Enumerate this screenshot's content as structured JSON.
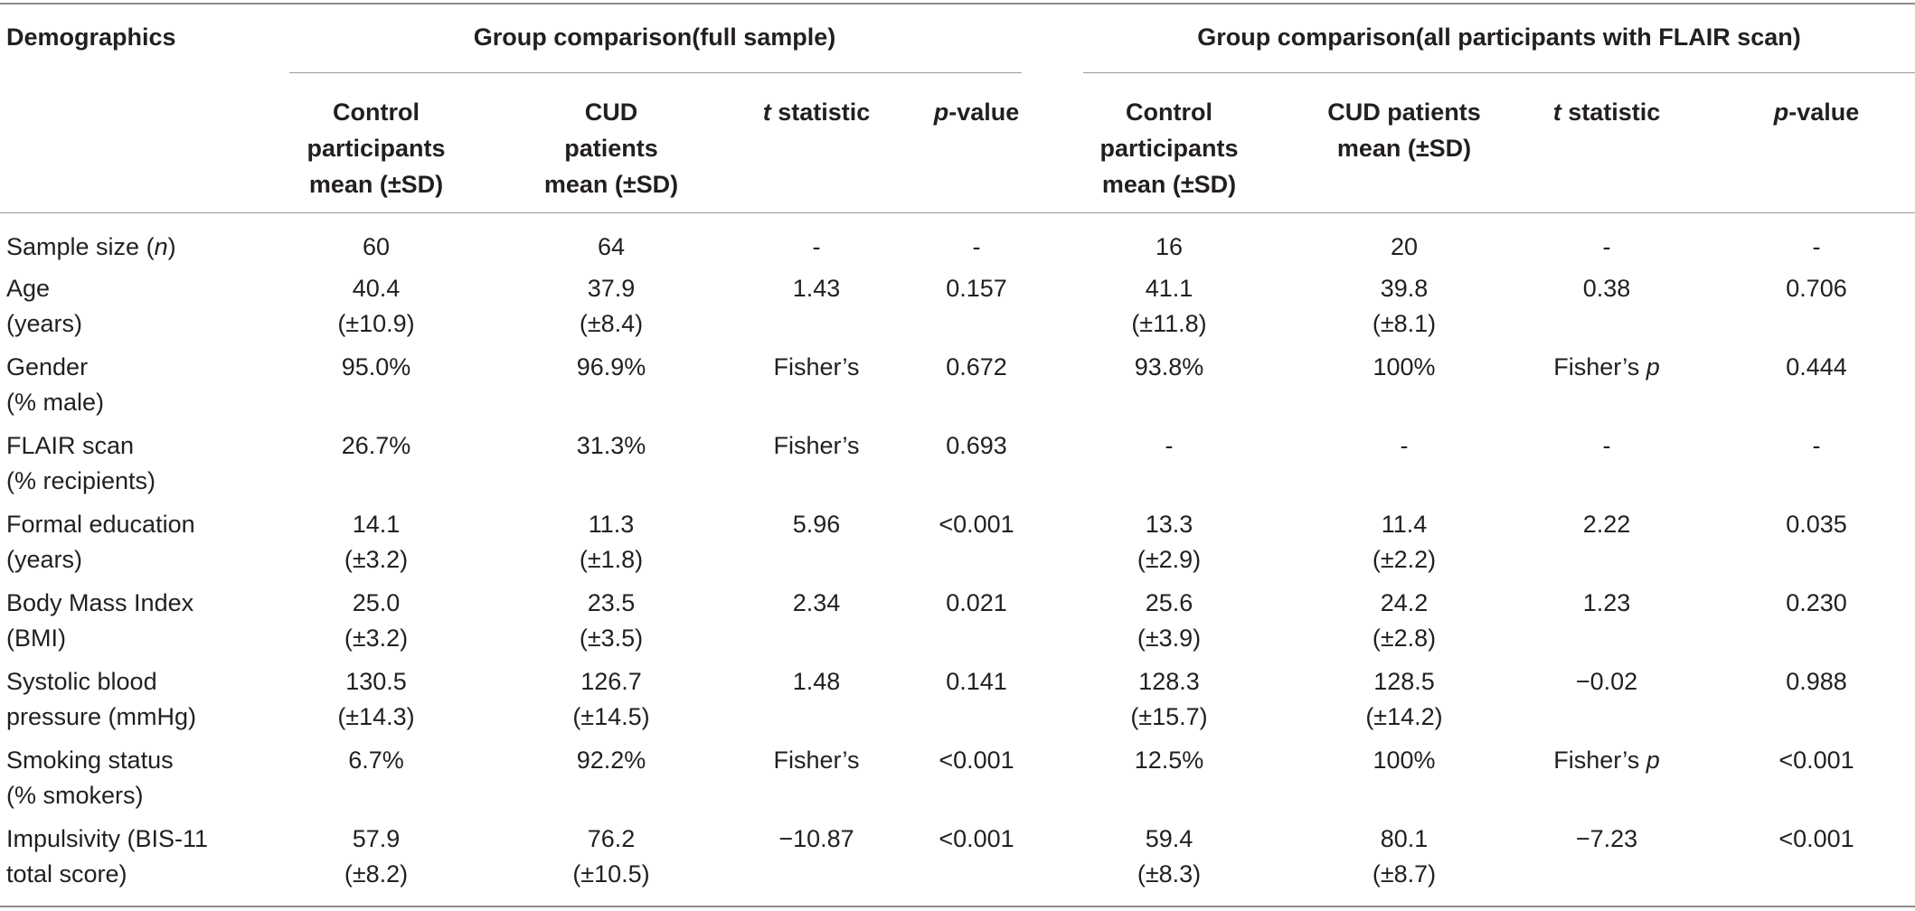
{
  "table": {
    "corner_header": "Demographics",
    "group_headers": [
      "Group comparison(full sample)",
      "Group comparison(all participants with FLAIR scan)"
    ],
    "col_headers": {
      "full_control": [
        "Control",
        "participants",
        "mean (±SD)"
      ],
      "full_cud": [
        "CUD",
        "patients",
        "mean (±SD)"
      ],
      "full_t": [
        "t",
        " statistic"
      ],
      "full_p": [
        "p",
        "-value"
      ],
      "flair_control": [
        "Control",
        "participants",
        "mean (±SD)"
      ],
      "flair_cud": [
        "CUD patients",
        "mean (±SD)"
      ],
      "flair_t": [
        "t",
        " statistic"
      ],
      "flair_p": [
        "p",
        "-value"
      ]
    },
    "rows": [
      {
        "label": [
          "Sample size (",
          "n",
          ")"
        ],
        "c1": [
          "60"
        ],
        "c2": [
          "64"
        ],
        "c3": [
          "-"
        ],
        "c4": [
          "-"
        ],
        "c5": [
          "16"
        ],
        "c6": [
          "20"
        ],
        "c7": [
          "-"
        ],
        "c8": [
          "-"
        ]
      },
      {
        "label": [
          "Age",
          "(years)"
        ],
        "c1": [
          "40.4",
          "(±10.9)"
        ],
        "c2": [
          "37.9",
          "(±8.4)"
        ],
        "c3": [
          "1.43"
        ],
        "c4": [
          "0.157"
        ],
        "c5": [
          "41.1",
          "(±11.8)"
        ],
        "c6": [
          "39.8",
          "(±8.1)"
        ],
        "c7": [
          "0.38"
        ],
        "c8": [
          "0.706"
        ]
      },
      {
        "label": [
          "Gender",
          "(% male)"
        ],
        "c1": [
          "95.0%"
        ],
        "c2": [
          "96.9%"
        ],
        "c3": [
          "Fisher’s"
        ],
        "c4": [
          "0.672"
        ],
        "c5": [
          "93.8%"
        ],
        "c6": [
          "100%"
        ],
        "c7": [
          "Fisher’s ",
          "p"
        ],
        "c8": [
          "0.444"
        ]
      },
      {
        "label": [
          "FLAIR scan",
          "(% recipients)"
        ],
        "c1": [
          "26.7%"
        ],
        "c2": [
          "31.3%"
        ],
        "c3": [
          "Fisher’s"
        ],
        "c4": [
          "0.693"
        ],
        "c5": [
          "-"
        ],
        "c6": [
          "-"
        ],
        "c7": [
          "-"
        ],
        "c8": [
          "-"
        ]
      },
      {
        "label": [
          "Formal education",
          "(years)"
        ],
        "c1": [
          "14.1",
          "(±3.2)"
        ],
        "c2": [
          "11.3",
          "(±1.8)"
        ],
        "c3": [
          "5.96"
        ],
        "c4": [
          "<0.001"
        ],
        "c5": [
          "13.3",
          "(±2.9)"
        ],
        "c6": [
          "11.4",
          "(±2.2)"
        ],
        "c7": [
          "2.22"
        ],
        "c8": [
          "0.035"
        ]
      },
      {
        "label": [
          "Body Mass Index",
          "(BMI)"
        ],
        "c1": [
          "25.0",
          "(±3.2)"
        ],
        "c2": [
          "23.5",
          "(±3.5)"
        ],
        "c3": [
          "2.34"
        ],
        "c4": [
          "0.021"
        ],
        "c5": [
          "25.6",
          "(±3.9)"
        ],
        "c6": [
          "24.2",
          "(±2.8)"
        ],
        "c7": [
          "1.23"
        ],
        "c8": [
          "0.230"
        ]
      },
      {
        "label": [
          "Systolic blood",
          "pressure (mmHg)"
        ],
        "c1": [
          "130.5",
          "(±14.3)"
        ],
        "c2": [
          "126.7",
          "(±14.5)"
        ],
        "c3": [
          "1.48"
        ],
        "c4": [
          "0.141"
        ],
        "c5": [
          "128.3",
          "(±15.7)"
        ],
        "c6": [
          "128.5",
          "(±14.2)"
        ],
        "c7": [
          "−0.02"
        ],
        "c8": [
          "0.988"
        ]
      },
      {
        "label": [
          "Smoking status",
          "(% smokers)"
        ],
        "c1": [
          "6.7%"
        ],
        "c2": [
          "92.2%"
        ],
        "c3": [
          "Fisher’s"
        ],
        "c4": [
          "<0.001"
        ],
        "c5": [
          "12.5%"
        ],
        "c6": [
          "100%"
        ],
        "c7": [
          "Fisher’s ",
          "p"
        ],
        "c8": [
          "<0.001"
        ]
      },
      {
        "label": [
          "Impulsivity (BIS-11",
          "total score)"
        ],
        "c1": [
          "57.9",
          "(±8.2)"
        ],
        "c2": [
          "76.2",
          "(±10.5)"
        ],
        "c3": [
          "−10.87"
        ],
        "c4": [
          "<0.001"
        ],
        "c5": [
          "59.4",
          "(±8.3)"
        ],
        "c6": [
          "80.1",
          "(±8.7)"
        ],
        "c7": [
          "−7.23"
        ],
        "c8": [
          "<0.001"
        ]
      }
    ]
  }
}
